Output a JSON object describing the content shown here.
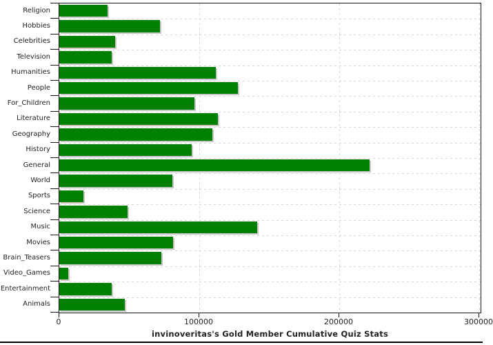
{
  "chart_data": {
    "type": "bar",
    "orientation": "horizontal",
    "title": "invinoveritas's Gold Member Cumulative Quiz Stats",
    "xlabel": "",
    "ylabel": "",
    "categories": [
      "Religion",
      "Hobbies",
      "Celebrities",
      "Television",
      "Humanities",
      "People",
      "For_Children",
      "Literature",
      "Geography",
      "History",
      "General",
      "World",
      "Sports",
      "Science",
      "Music",
      "Movies",
      "Brain_Teasers",
      "Video_Games",
      "Entertainment",
      "Animals"
    ],
    "values": [
      34500,
      72000,
      40000,
      37600,
      111800,
      127700,
      96500,
      113100,
      109400,
      94600,
      221700,
      80800,
      17200,
      48800,
      141400,
      81300,
      72900,
      6400,
      37200,
      47000
    ],
    "xlim": [
      0,
      300000
    ],
    "x_ticks": [
      0,
      100000,
      200000,
      300000
    ],
    "x_tick_labels": [
      "0",
      "100000",
      "200000",
      "300000"
    ],
    "grid": true,
    "legend": "none",
    "bar_color": "#008000",
    "bar_shadow_color": "#c8c8c8",
    "grid_color": "#d6d6d6",
    "axis_color": "#111111",
    "text_color": "#222222",
    "background_color": "#ffffff"
  }
}
